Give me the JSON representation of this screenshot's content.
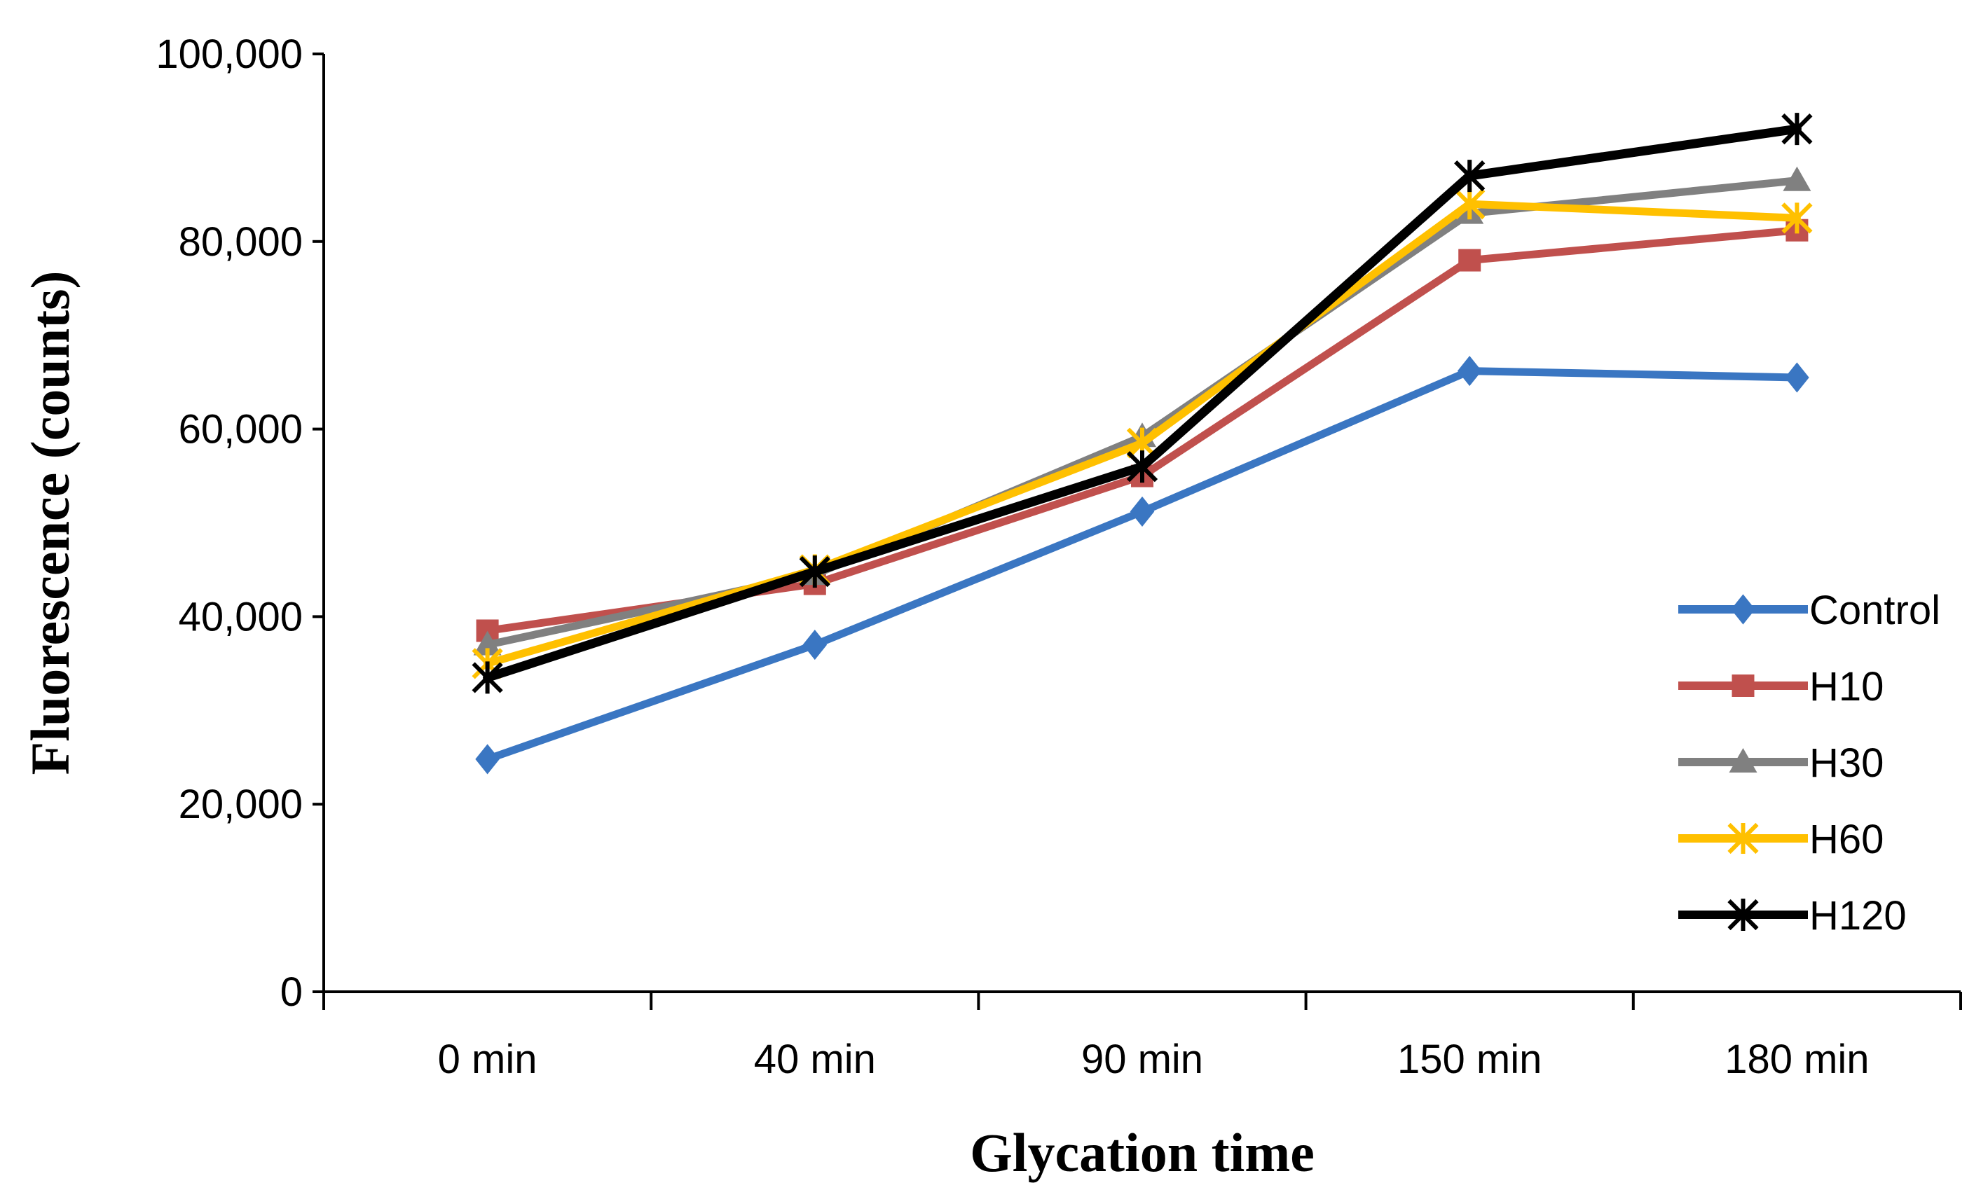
{
  "chart_data": {
    "type": "line",
    "title": "",
    "xlabel": "Glycation time",
    "ylabel": "Fluorescence (counts)",
    "categories": [
      "0 min",
      "40 min",
      "90 min",
      "150 min",
      "180 min"
    ],
    "ylim": [
      0,
      100000
    ],
    "yticks": [
      0,
      20000,
      40000,
      60000,
      80000,
      100000
    ],
    "ytick_labels": [
      "0",
      "20,000",
      "40,000",
      "60,000",
      "80,000",
      "100,000"
    ],
    "legend_position": "right",
    "grid": false,
    "series": [
      {
        "name": "Control",
        "color": "#3A76C2",
        "marker": "diamond",
        "values": [
          24800,
          37000,
          51200,
          66200,
          65500
        ]
      },
      {
        "name": "H10",
        "color": "#C0504D",
        "marker": "square",
        "values": [
          38500,
          43500,
          55000,
          78000,
          81200
        ]
      },
      {
        "name": "H30",
        "color": "#808080",
        "marker": "triangle",
        "values": [
          37000,
          44500,
          59200,
          83000,
          86500
        ]
      },
      {
        "name": "H60",
        "color": "#FFC000",
        "marker": "asterisk",
        "values": [
          35000,
          45000,
          58500,
          84000,
          82500
        ]
      },
      {
        "name": "H120",
        "color": "#000000",
        "marker": "star",
        "values": [
          33500,
          44800,
          56000,
          87000,
          92000
        ]
      }
    ]
  }
}
